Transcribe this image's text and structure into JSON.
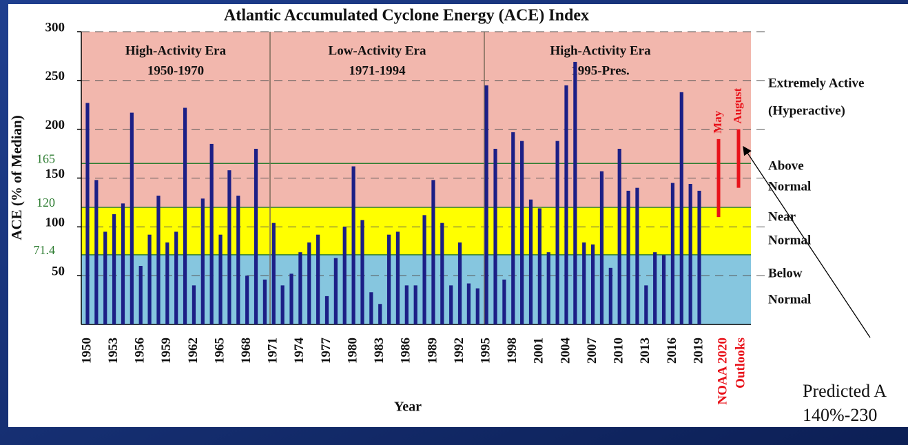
{
  "chart_data": {
    "type": "bar",
    "title": "Atlantic Accumulated Cyclone Energy (ACE) Index",
    "xlabel": "Year",
    "ylabel": "ACE (% of Median)",
    "categories": [
      "1950",
      null,
      null,
      "1953",
      null,
      null,
      "1956",
      null,
      null,
      "1959",
      null,
      null,
      "1962",
      null,
      null,
      "1965",
      null,
      null,
      "1968",
      null,
      null,
      "1971",
      null,
      null,
      "1974",
      null,
      null,
      "1977",
      null,
      null,
      "1980",
      null,
      null,
      "1983",
      null,
      null,
      "1986",
      null,
      null,
      "1989",
      null,
      null,
      "1992",
      null,
      null,
      "1995",
      null,
      null,
      "1998",
      null,
      null,
      "2001",
      null,
      null,
      "2004",
      null,
      null,
      "2007",
      null,
      null,
      "2010",
      null,
      null,
      "2013",
      null,
      null,
      "2016",
      null,
      null,
      "2019"
    ],
    "values": [
      227,
      148,
      95,
      113,
      124,
      217,
      60,
      92,
      132,
      84,
      95,
      222,
      40,
      129,
      185,
      92,
      158,
      132,
      50,
      180,
      46,
      104,
      40,
      52,
      74,
      84,
      92,
      29,
      68,
      100,
      162,
      107,
      33,
      21,
      92,
      95,
      40,
      40,
      112,
      148,
      104,
      40,
      84,
      42,
      37,
      245,
      180,
      46,
      197,
      188,
      128,
      119,
      74,
      188,
      245,
      269,
      84,
      82,
      157,
      58,
      180,
      137,
      140,
      40,
      74,
      71,
      145,
      238,
      144,
      137
    ],
    "color": "#1c1f86",
    "ylim": [
      0,
      300
    ],
    "yticks": [
      50,
      100,
      150,
      200,
      250,
      300
    ],
    "grid": true,
    "threshold_ticks": [
      71.4,
      120,
      165
    ],
    "threshold_color": "#2e7d32",
    "band_colors": [
      "#86c6df",
      "#ffff00",
      "#f2b7ad"
    ],
    "eras": [
      {
        "label": "High-Activity Era",
        "years": "1950-1970"
      },
      {
        "label": "Low-Activity Era",
        "years": "1971-1994"
      },
      {
        "label": "High-Activity Era",
        "years": "1995-Pres."
      }
    ],
    "outlooks": {
      "label": [
        "NOAA 2020",
        "Outlooks"
      ],
      "color": "#e8121a",
      "series": [
        {
          "name": "May",
          "low": 110,
          "high": 190
        },
        {
          "name": "August",
          "low": 140,
          "high": 200
        }
      ]
    },
    "category_labels": [
      "Extremely Active",
      "(Hyperactive)",
      "Above",
      "Normal",
      "Near",
      "Normal",
      "Below",
      "Normal"
    ],
    "annotation": [
      "Predicted A",
      "140%-230"
    ]
  }
}
